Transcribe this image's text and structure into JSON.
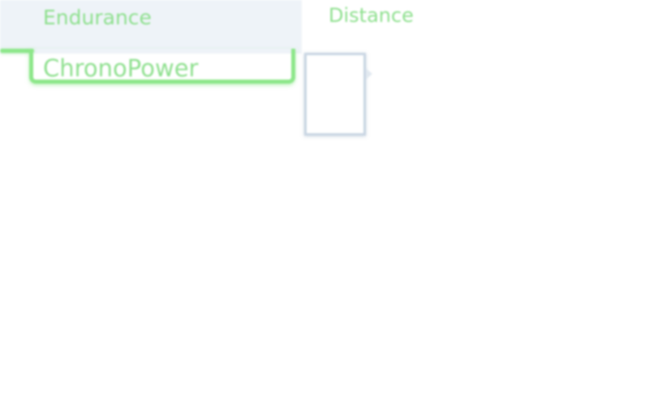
{
  "menu": {
    "endurance_label": "Endurance",
    "distance_label": "Distance",
    "chrono_label": "ChronoPower"
  },
  "colors": {
    "accent_green": "#8de78a",
    "panel_bg": "#eef3f8",
    "box_border": "#c9d6e3"
  }
}
